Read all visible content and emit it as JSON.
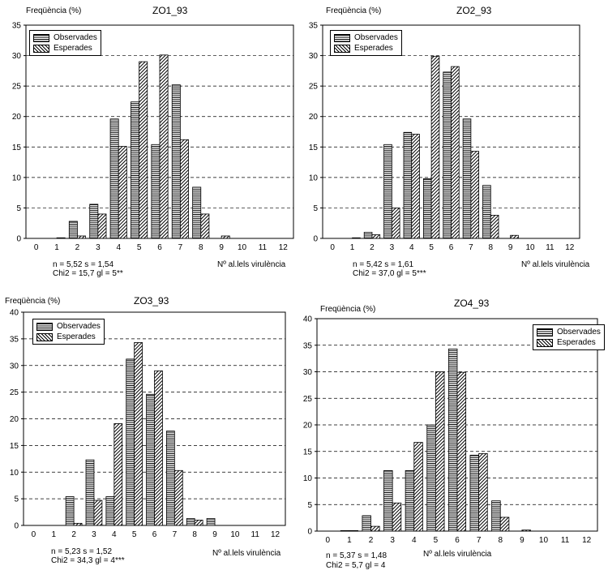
{
  "legend": {
    "observed": "Observades",
    "expected": "Esperades"
  },
  "ylabel": "Freqüència (%)",
  "xlabel": "Nº al.lels virulència",
  "chart_data": [
    {
      "type": "bar",
      "title": "ZO1_93",
      "ylabel": "Freqüència (%)",
      "xlabel": "Nº al.lels virulència",
      "categories": [
        "0",
        "1",
        "2",
        "3",
        "4",
        "5",
        "6",
        "7",
        "8",
        "9",
        "10",
        "11",
        "12"
      ],
      "ylim": [
        0,
        35
      ],
      "yticks": [
        0,
        5,
        10,
        15,
        20,
        25,
        30,
        35
      ],
      "grid": "dashed horizontal",
      "legend_position": "top-left",
      "series": [
        {
          "name": "Observades",
          "values": [
            0,
            0,
            2.8,
            5.6,
            19.6,
            22.4,
            15.4,
            25.2,
            8.4,
            0,
            0,
            0,
            0
          ]
        },
        {
          "name": "Esperades",
          "values": [
            0,
            0.1,
            0.4,
            4.0,
            15.1,
            29.0,
            30.1,
            16.2,
            4.0,
            0.4,
            0,
            0,
            0
          ]
        }
      ],
      "stats": [
        "n = 5,52   s = 1,54",
        "Chi2 = 15,7  gl = 5**"
      ]
    },
    {
      "type": "bar",
      "title": "ZO2_93",
      "ylabel": "Freqüència (%)",
      "xlabel": "Nº al.lels virulència",
      "categories": [
        "0",
        "1",
        "2",
        "3",
        "4",
        "5",
        "6",
        "7",
        "8",
        "9",
        "10",
        "11",
        "12"
      ],
      "ylim": [
        0,
        35
      ],
      "yticks": [
        0,
        5,
        10,
        15,
        20,
        25,
        30,
        35
      ],
      "grid": "dashed horizontal",
      "legend_position": "top-left",
      "series": [
        {
          "name": "Observades",
          "values": [
            0,
            0,
            1.0,
            15.4,
            17.4,
            9.8,
            27.3,
            19.6,
            8.7,
            0,
            0,
            0,
            0
          ]
        },
        {
          "name": "Esperades",
          "values": [
            0,
            0.1,
            0.6,
            5.0,
            17.1,
            29.9,
            28.2,
            14.3,
            3.8,
            0.5,
            0,
            0,
            0
          ]
        }
      ],
      "stats": [
        "n = 5,42   s = 1,61",
        "Chi2 = 37,0  gl = 5***"
      ]
    },
    {
      "type": "bar",
      "title": "ZO3_93",
      "ylabel": "Freqüència (%)",
      "xlabel": "Nº al.lels virulència",
      "categories": [
        "0",
        "1",
        "2",
        "3",
        "4",
        "5",
        "6",
        "7",
        "8",
        "9",
        "10",
        "11",
        "12"
      ],
      "ylim": [
        0,
        40
      ],
      "yticks": [
        0,
        5,
        10,
        15,
        20,
        25,
        30,
        35,
        40
      ],
      "grid": "dashed horizontal",
      "legend_position": "top-left",
      "series": [
        {
          "name": "Observades",
          "values": [
            0,
            0,
            5.4,
            12.3,
            5.4,
            31.2,
            24.6,
            17.7,
            1.3,
            1.3,
            0,
            0,
            0
          ]
        },
        {
          "name": "Esperades",
          "values": [
            0,
            0,
            0.4,
            4.7,
            19.1,
            34.3,
            29.0,
            10.3,
            1.0,
            0,
            0,
            0,
            0
          ]
        }
      ],
      "stats": [
        "n = 5,23   s = 1,52",
        "Chi2 = 34,3  gl = 4***"
      ]
    },
    {
      "type": "bar",
      "title": "ZO4_93",
      "ylabel": "Freqüència (%)",
      "xlabel": "Nº al.lels virulència",
      "categories": [
        "0",
        "1",
        "2",
        "3",
        "4",
        "5",
        "6",
        "7",
        "8",
        "9",
        "10",
        "11",
        "12"
      ],
      "ylim": [
        0,
        40
      ],
      "yticks": [
        0,
        5,
        10,
        15,
        20,
        25,
        30,
        35,
        40
      ],
      "grid": "dashed horizontal",
      "legend_position": "top-right",
      "series": [
        {
          "name": "Observades",
          "values": [
            0,
            0.1,
            2.9,
            11.4,
            11.4,
            20.0,
            34.3,
            14.3,
            5.7,
            0,
            0,
            0,
            0
          ]
        },
        {
          "name": "Esperades",
          "values": [
            0,
            0.1,
            0.9,
            5.3,
            16.7,
            30.0,
            29.9,
            14.6,
            2.6,
            0.2,
            0,
            0,
            0
          ]
        }
      ],
      "stats": [
        "n = 5,37   s = 1,48",
        "Chi2 = 5,7   gl = 4"
      ]
    }
  ]
}
